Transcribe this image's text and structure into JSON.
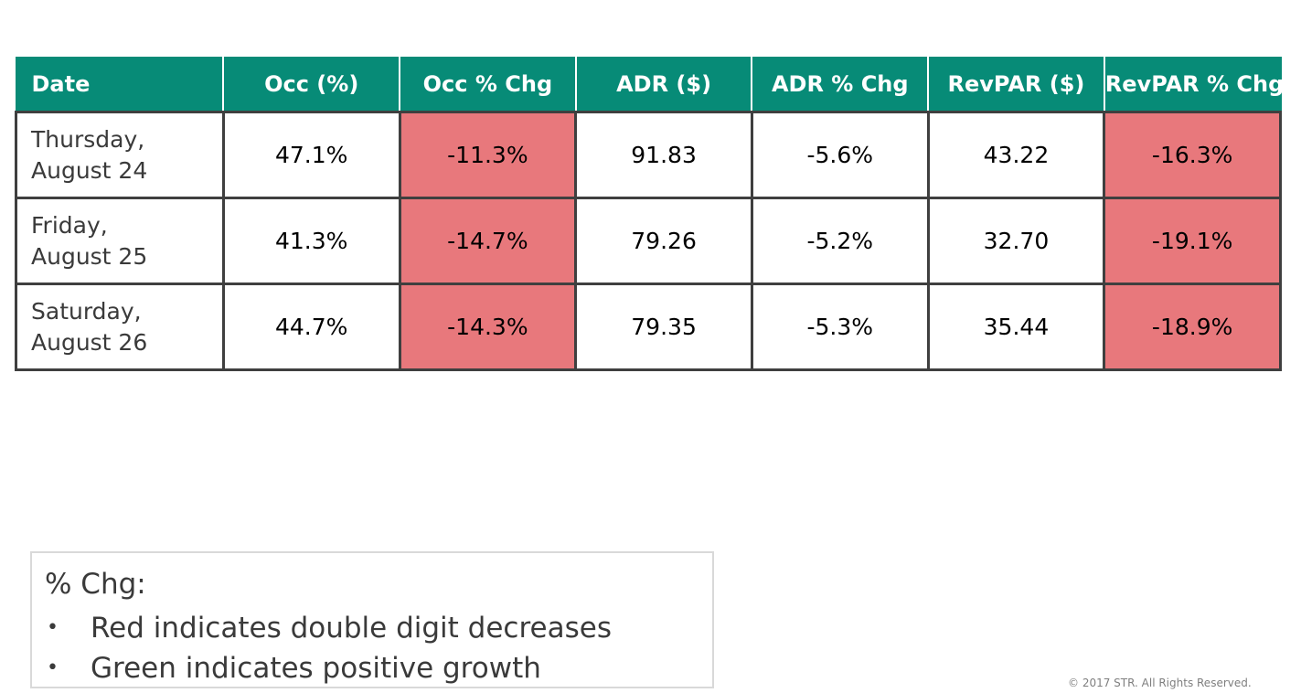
{
  "colors": {
    "header_bg": "#078b77",
    "red_highlight": "#e8787c",
    "border": "#3f3f3f"
  },
  "table": {
    "headers": [
      "Date",
      "Occ (%)",
      "Occ % Chg",
      "ADR ($)",
      "ADR % Chg",
      "RevPAR ($)",
      "RevPAR % Chg"
    ],
    "rows": [
      {
        "date_line1": "Thursday,",
        "date_line2": "August 24",
        "occ": "47.1%",
        "occ_chg": "-11.3%",
        "adr": "91.83",
        "adr_chg": "-5.6%",
        "revpar": "43.22",
        "revpar_chg": "-16.3%"
      },
      {
        "date_line1": "Friday,",
        "date_line2": "August 25",
        "occ": "41.3%",
        "occ_chg": "-14.7%",
        "adr": "79.26",
        "adr_chg": "-5.2%",
        "revpar": "32.70",
        "revpar_chg": "-19.1%"
      },
      {
        "date_line1": "Saturday,",
        "date_line2": "August 26",
        "occ": "44.7%",
        "occ_chg": "-14.3%",
        "adr": "79.35",
        "adr_chg": "-5.3%",
        "revpar": "35.44",
        "revpar_chg": "-18.9%"
      }
    ]
  },
  "legend": {
    "title": "% Chg:",
    "bullet_glyph": "•",
    "items": [
      "Red indicates double digit decreases",
      "Green indicates positive growth"
    ]
  },
  "footer": {
    "copyright": "© 2017 STR. All Rights Reserved."
  }
}
